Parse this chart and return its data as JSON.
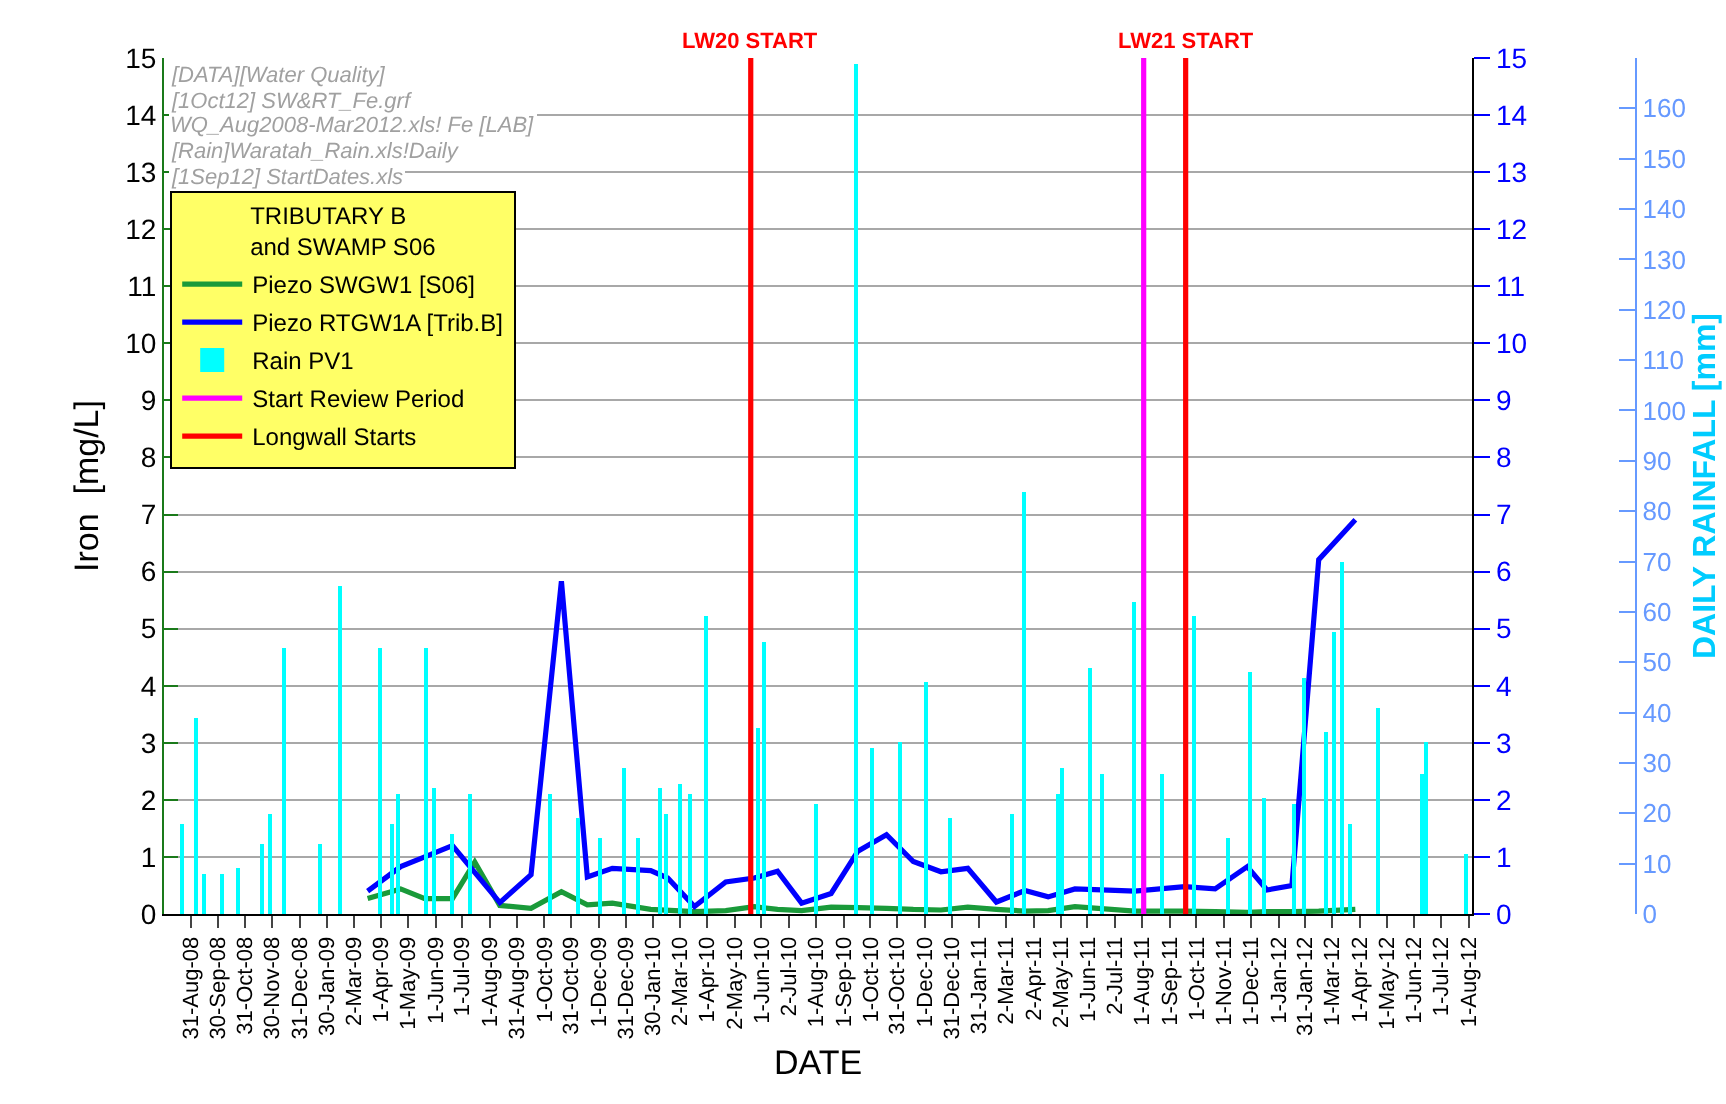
{
  "chart_data": {
    "type": "line",
    "xlabel": "DATE",
    "ylabel": "Iron  [mg/L]",
    "y3label": "DAILY RAINFALL [mm]",
    "legend_title": "TRIBUTARY B\nand SWAMP S06",
    "annotations": [
      "[DATA][Water Quality]",
      "[1Oct12] SW&RT_Fe.grf",
      "WQ_Aug2008-Mar2012.xls! Fe [LAB]",
      "[Rain]Waratah_Rain.xls!Daily",
      "[1Sep12] StartDates.xls",
      {
        "text": "LW20 START",
        "x": "2010-05-20",
        "y": 15
      },
      {
        "text": "LW21 START",
        "x": "2011-09-19",
        "y": 15
      }
    ],
    "xlim": [
      "2008-08-01",
      "2012-08-05"
    ],
    "xticks": [
      {
        "value": "2008-08-31",
        "label": "31-Aug-08"
      },
      {
        "value": "2008-09-30",
        "label": "30-Sep-08"
      },
      {
        "value": "2008-10-31",
        "label": "31-Oct-08"
      },
      {
        "value": "2008-11-30",
        "label": "30-Nov-08"
      },
      {
        "value": "2008-12-31",
        "label": "31-Dec-08"
      },
      {
        "value": "2009-01-30",
        "label": "30-Jan-09"
      },
      {
        "value": "2009-03-02",
        "label": "2-Mar-09"
      },
      {
        "value": "2009-04-01",
        "label": "1-Apr-09"
      },
      {
        "value": "2009-05-01",
        "label": "1-May-09"
      },
      {
        "value": "2009-06-01",
        "label": "1-Jun-09"
      },
      {
        "value": "2009-07-01",
        "label": "1-Jul-09"
      },
      {
        "value": "2009-08-01",
        "label": "1-Aug-09"
      },
      {
        "value": "2009-08-31",
        "label": "31-Aug-09"
      },
      {
        "value": "2009-10-01",
        "label": "1-Oct-09"
      },
      {
        "value": "2009-10-31",
        "label": "31-Oct-09"
      },
      {
        "value": "2009-12-01",
        "label": "1-Dec-09"
      },
      {
        "value": "2009-12-31",
        "label": "31-Dec-09"
      },
      {
        "value": "2010-01-30",
        "label": "30-Jan-10"
      },
      {
        "value": "2010-03-02",
        "label": "2-Mar-10"
      },
      {
        "value": "2010-04-01",
        "label": "1-Apr-10"
      },
      {
        "value": "2010-05-02",
        "label": "2-May-10"
      },
      {
        "value": "2010-06-01",
        "label": "1-Jun-10"
      },
      {
        "value": "2010-07-02",
        "label": "2-Jul-10"
      },
      {
        "value": "2010-08-01",
        "label": "1-Aug-10"
      },
      {
        "value": "2010-09-01",
        "label": "1-Sep-10"
      },
      {
        "value": "2010-10-01",
        "label": "1-Oct-10"
      },
      {
        "value": "2010-10-31",
        "label": "31-Oct-10"
      },
      {
        "value": "2010-12-01",
        "label": "1-Dec-10"
      },
      {
        "value": "2010-12-31",
        "label": "31-Dec-10"
      },
      {
        "value": "2011-01-31",
        "label": "31-Jan-11"
      },
      {
        "value": "2011-03-02",
        "label": "2-Mar-11"
      },
      {
        "value": "2011-04-02",
        "label": "2-Apr-11"
      },
      {
        "value": "2011-05-02",
        "label": "2-May-11"
      },
      {
        "value": "2011-06-01",
        "label": "1-Jun-11"
      },
      {
        "value": "2011-07-02",
        "label": "2-Jul-11"
      },
      {
        "value": "2011-08-01",
        "label": "1-Aug-11"
      },
      {
        "value": "2011-09-01",
        "label": "1-Sep-11"
      },
      {
        "value": "2011-10-01",
        "label": "1-Oct-11"
      },
      {
        "value": "2011-11-01",
        "label": "1-Nov-11"
      },
      {
        "value": "2011-12-01",
        "label": "1-Dec-11"
      },
      {
        "value": "2012-01-01",
        "label": "1-Jan-12"
      },
      {
        "value": "2012-01-31",
        "label": "31-Jan-12"
      },
      {
        "value": "2012-03-01",
        "label": "1-Mar-12"
      },
      {
        "value": "2012-04-01",
        "label": "1-Apr-12"
      },
      {
        "value": "2012-05-01",
        "label": "1-May-12"
      },
      {
        "value": "2012-06-01",
        "label": "1-Jun-12"
      },
      {
        "value": "2012-07-01",
        "label": "1-Jul-12"
      },
      {
        "value": "2012-08-01",
        "label": "1-Aug-12"
      }
    ],
    "ylim": [
      0,
      15
    ],
    "yticks": [
      0,
      1,
      2,
      3,
      4,
      5,
      6,
      7,
      8,
      9,
      10,
      11,
      12,
      13,
      14,
      15
    ],
    "y2lim": [
      0,
      15
    ],
    "y2ticks": [
      0,
      1,
      2,
      3,
      4,
      5,
      6,
      7,
      8,
      9,
      10,
      11,
      12,
      13,
      14,
      15
    ],
    "y3lim": [
      0,
      170
    ],
    "y3ticks": [
      0,
      10,
      20,
      30,
      40,
      50,
      60,
      70,
      80,
      90,
      100,
      110,
      120,
      130,
      140,
      150,
      160
    ],
    "grid": "y",
    "legend": "top left",
    "marker": "none",
    "line_style": "solid",
    "series": [
      {
        "name": "Piezo SWGW1 [S06]",
        "color": "#1a9a3a",
        "x": [
          "2009-03-17",
          "2009-04-23",
          "2009-05-20",
          "2009-06-20",
          "2009-07-15",
          "2009-08-12",
          "2009-09-16",
          "2009-10-20",
          "2009-11-18",
          "2009-12-16",
          "2010-01-28",
          "2010-03-18",
          "2010-04-22",
          "2010-05-24",
          "2010-06-19",
          "2010-07-16",
          "2010-08-18",
          "2010-09-17",
          "2010-10-19",
          "2010-11-18",
          "2010-12-19",
          "2011-01-18",
          "2011-02-19",
          "2011-03-23",
          "2011-04-18",
          "2011-05-18",
          "2011-07-24",
          "2011-09-18",
          "2011-10-22",
          "2011-11-27",
          "2011-12-19",
          "2012-01-16",
          "2012-02-15",
          "2012-03-27"
        ],
        "values": [
          0.27,
          0.44,
          0.27,
          0.27,
          0.91,
          0.15,
          0.1,
          0.39,
          0.16,
          0.19,
          0.08,
          0.04,
          0.06,
          0.13,
          0.08,
          0.06,
          0.12,
          0.11,
          0.1,
          0.08,
          0.07,
          0.12,
          0.08,
          0.05,
          0.06,
          0.13,
          0.05,
          0.05,
          0.04,
          0.03,
          0.04,
          0.04,
          0.05,
          0.08
        ]
      },
      {
        "name": "Piezo RTGW1A [Trib.B]",
        "color": "#0000ff",
        "x": [
          "2009-03-17",
          "2009-04-23",
          "2009-05-20",
          "2009-06-20",
          "2009-08-12",
          "2009-09-16",
          "2009-10-20",
          "2009-11-18",
          "2009-12-16",
          "2010-01-28",
          "2010-02-16",
          "2010-03-18",
          "2010-04-22",
          "2010-05-24",
          "2010-06-19",
          "2010-07-16",
          "2010-08-18",
          "2010-09-17",
          "2010-10-19",
          "2010-11-18",
          "2010-12-19",
          "2011-01-18",
          "2011-02-19",
          "2011-03-23",
          "2011-04-18",
          "2011-05-18",
          "2011-07-24",
          "2011-09-18",
          "2011-10-22",
          "2011-11-27",
          "2011-12-19",
          "2012-01-16",
          "2012-02-15",
          "2012-03-27"
        ],
        "values": [
          0.4,
          0.83,
          1.0,
          1.2,
          0.2,
          0.69,
          5.83,
          0.65,
          0.8,
          0.76,
          0.63,
          0.13,
          0.56,
          0.63,
          0.75,
          0.19,
          0.36,
          1.1,
          1.39,
          0.92,
          0.74,
          0.8,
          0.21,
          0.41,
          0.3,
          0.44,
          0.4,
          0.48,
          0.44,
          0.83,
          0.42,
          0.5,
          6.21,
          6.91
        ]
      },
      {
        "name": "Rain PV1",
        "type": "bar",
        "axis": "y3",
        "color": "#00ffff",
        "x": [
          "2008-08-22",
          "2008-09-05",
          "2008-09-15",
          "2008-10-04",
          "2008-10-22",
          "2008-11-19",
          "2008-11-28",
          "2008-12-13",
          "2009-01-23",
          "2009-02-15",
          "2009-04-01",
          "2009-04-14",
          "2009-04-21",
          "2009-05-21",
          "2009-05-31",
          "2009-06-20",
          "2009-07-09",
          "2009-10-08",
          "2009-11-07",
          "2009-12-03",
          "2009-12-29",
          "2010-01-13",
          "2010-02-07",
          "2010-02-15",
          "2010-03-03",
          "2010-03-14",
          "2010-04-01",
          "2010-05-29",
          "2010-06-04",
          "2010-08-01",
          "2010-09-16",
          "2010-10-04",
          "2010-11-04",
          "2010-12-03",
          "2010-12-29",
          "2011-03-08",
          "2011-03-23",
          "2011-04-29",
          "2011-05-03",
          "2011-06-03",
          "2011-06-18",
          "2011-07-24",
          "2011-08-23",
          "2011-09-29",
          "2011-11-06",
          "2011-11-30",
          "2011-12-15",
          "2012-01-19",
          "2012-01-29",
          "2012-02-23",
          "2012-03-04",
          "2012-03-12",
          "2012-03-21",
          "2012-04-22",
          "2012-06-09",
          "2012-06-15",
          "2012-07-28"
        ],
        "values": [
          18,
          39,
          8,
          8,
          9,
          14,
          20,
          53,
          14,
          65,
          53,
          18,
          24,
          53,
          25,
          16,
          24,
          24,
          19,
          15,
          29,
          15,
          25,
          20,
          26,
          24,
          59,
          37,
          54,
          22,
          169,
          33,
          34,
          46,
          19,
          20,
          84,
          24,
          29,
          49,
          28,
          62,
          28,
          59,
          15,
          48,
          23,
          22,
          47,
          36,
          56,
          70,
          18,
          41,
          28,
          34,
          12
        ]
      },
      {
        "name": "Start Review Period",
        "color": "#ff00ff",
        "x": [
          "2011-08-03",
          "2011-08-03"
        ],
        "values": [
          0,
          15
        ]
      },
      {
        "name": "Longwall Starts",
        "color": "#ff0000",
        "x": [
          "2010-05-20",
          "2010-05-20",
          null,
          "2011-09-19",
          "2011-09-19"
        ],
        "values": [
          0,
          15,
          null,
          0,
          15
        ]
      }
    ]
  }
}
